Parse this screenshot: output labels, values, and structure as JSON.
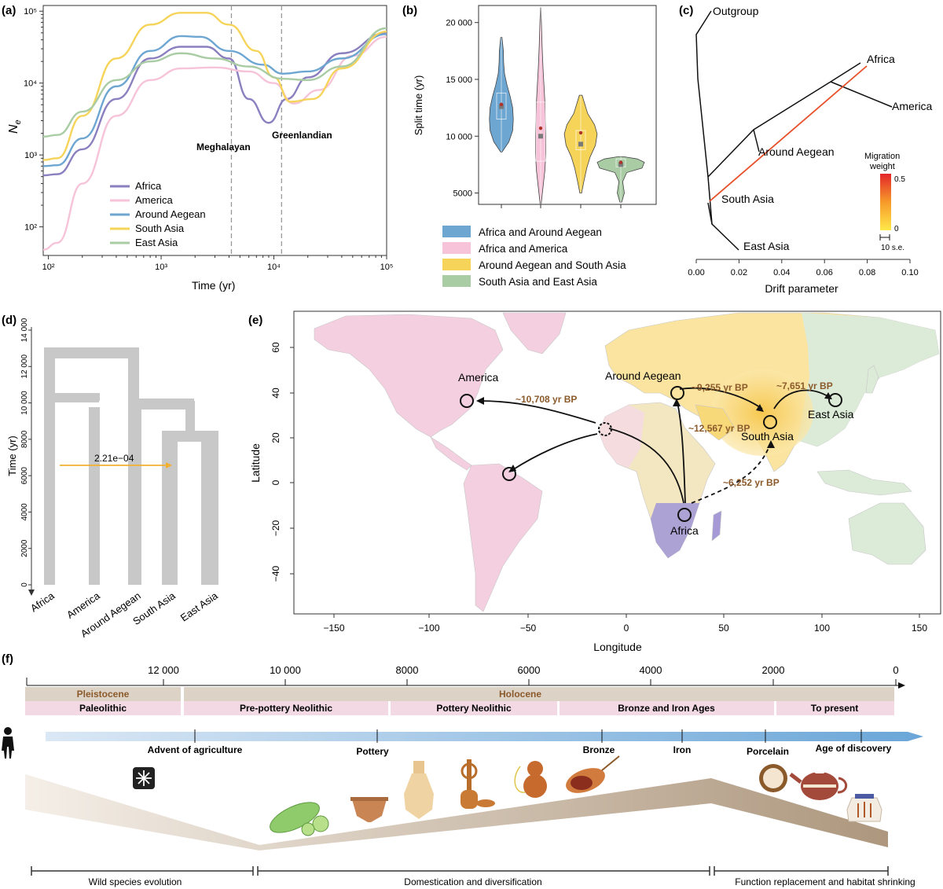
{
  "panel_labels": {
    "a": "(a)",
    "b": "(b)",
    "c": "(c)",
    "d": "(d)",
    "e": "(e)",
    "f": "(f)"
  },
  "colors": {
    "africa": "#8b7fbf",
    "america": "#f6c3d8",
    "aegean": "#6ea6d2",
    "south_asia": "#f6d45a",
    "east_asia": "#a9cca5",
    "bar": "#c8c8c8",
    "arrow": "#d9a34a",
    "mig_line": "#e8502a",
    "label_brown": "#8b5a2b",
    "timeline_bar": "#dcd2c6",
    "timeline_pink": "#f3d9e4",
    "timeline_blue": "#7fb1dc"
  },
  "chart_data": [
    {
      "id": "a",
      "type": "line",
      "ylabel": "Ne",
      "xlabel": "Time (yr)",
      "x_scale": "log",
      "y_scale": "log",
      "xlim": [
        90,
        100000
      ],
      "ylim": [
        40,
        120000
      ],
      "x_ticks": [
        {
          "v": 100,
          "l": "10²"
        },
        {
          "v": 1000,
          "l": "10³"
        },
        {
          "v": 10000,
          "l": "10⁴"
        },
        {
          "v": 100000,
          "l": "10⁵"
        }
      ],
      "y_ticks": [
        {
          "v": 100,
          "l": "10²"
        },
        {
          "v": 1000,
          "l": "10³"
        },
        {
          "v": 10000,
          "l": "10⁴"
        },
        {
          "v": 100000,
          "l": "10⁵"
        }
      ],
      "vlines": [
        {
          "x": 4200,
          "label": "Meghalayan"
        },
        {
          "x": 11700,
          "label": "Greenlandian"
        }
      ],
      "legend": [
        "Africa",
        "America",
        "Around Aegean",
        "South Asia",
        "East Asia"
      ],
      "series": [
        {
          "name": "Africa",
          "color": "#8b7fbf",
          "points": [
            [
              90,
              520
            ],
            [
              120,
              540
            ],
            [
              200,
              1200
            ],
            [
              400,
              6000
            ],
            [
              800,
              22000
            ],
            [
              1500,
              32000
            ],
            [
              2500,
              32000
            ],
            [
              4000,
              22000
            ],
            [
              6000,
              6000
            ],
            [
              9000,
              2800
            ],
            [
              13000,
              6000
            ],
            [
              20000,
              12000
            ],
            [
              40000,
              26000
            ],
            [
              100000,
              50000
            ]
          ]
        },
        {
          "name": "America",
          "color": "#f6c3d8",
          "points": [
            [
              90,
              48
            ],
            [
              120,
              60
            ],
            [
              200,
              400
            ],
            [
              400,
              3500
            ],
            [
              800,
              11000
            ],
            [
              1500,
              16000
            ],
            [
              3000,
              16500
            ],
            [
              6000,
              14500
            ],
            [
              10000,
              10000
            ],
            [
              15000,
              5200
            ],
            [
              25000,
              8000
            ],
            [
              50000,
              24000
            ],
            [
              100000,
              44000
            ]
          ]
        },
        {
          "name": "Around Aegean",
          "color": "#6ea6d2",
          "points": [
            [
              90,
              700
            ],
            [
              120,
              720
            ],
            [
              200,
              1700
            ],
            [
              400,
              9000
            ],
            [
              800,
              28000
            ],
            [
              1500,
              45000
            ],
            [
              2200,
              44000
            ],
            [
              4000,
              28000
            ],
            [
              8000,
              18000
            ],
            [
              12000,
              13500
            ],
            [
              20000,
              14500
            ],
            [
              40000,
              22000
            ],
            [
              100000,
              48000
            ]
          ]
        },
        {
          "name": "South Asia",
          "color": "#f6d45a",
          "points": [
            [
              90,
              850
            ],
            [
              120,
              900
            ],
            [
              200,
              3500
            ],
            [
              400,
              22000
            ],
            [
              800,
              65000
            ],
            [
              1500,
              95000
            ],
            [
              2500,
              95000
            ],
            [
              4000,
              65000
            ],
            [
              7000,
              28000
            ],
            [
              10000,
              12000
            ],
            [
              14000,
              5500
            ],
            [
              22000,
              6000
            ],
            [
              40000,
              16000
            ],
            [
              100000,
              52000
            ]
          ]
        },
        {
          "name": "East Asia",
          "color": "#a9cca5",
          "points": [
            [
              90,
              1800
            ],
            [
              120,
              1900
            ],
            [
              200,
              4000
            ],
            [
              400,
              11000
            ],
            [
              800,
              20000
            ],
            [
              1500,
              26000
            ],
            [
              3000,
              22000
            ],
            [
              6000,
              17000
            ],
            [
              12000,
              11500
            ],
            [
              20000,
              11000
            ],
            [
              40000,
              17000
            ],
            [
              100000,
              58000
            ]
          ]
        }
      ]
    },
    {
      "id": "b",
      "type": "violin",
      "ylabel": "Split time (yr)",
      "ylim": [
        4000,
        21500
      ],
      "y_ticks": [
        5000,
        10000,
        15000,
        20000
      ],
      "y_tick_labels": [
        "5000",
        "10 000",
        "15 000",
        "20 000"
      ],
      "legend": [
        "Africa and Around Aegean",
        "Africa and America",
        "Around Aegean and South Asia",
        "South Asia and East Asia"
      ],
      "groups": [
        {
          "name": "Africa and Around Aegean",
          "color": "#6ea6d2",
          "min": 8600,
          "max": 18700,
          "median": 12600,
          "mean": 12800,
          "q1": 11500,
          "q3": 13800,
          "profile": [
            [
              8600,
              0.05
            ],
            [
              9500,
              0.6
            ],
            [
              10500,
              0.9
            ],
            [
              11500,
              0.95
            ],
            [
              12500,
              0.9
            ],
            [
              13500,
              0.7
            ],
            [
              14500,
              0.45
            ],
            [
              15500,
              0.25
            ],
            [
              16500,
              0.18
            ],
            [
              17500,
              0.16
            ],
            [
              18700,
              0.05
            ]
          ]
        },
        {
          "name": "Africa and America",
          "color": "#f6c3d8",
          "min": 4000,
          "max": 21300,
          "median": 10000,
          "mean": 10700,
          "q1": 7800,
          "q3": 13000,
          "profile": [
            [
              4000,
              0.05
            ],
            [
              5500,
              0.25
            ],
            [
              7000,
              0.45
            ],
            [
              8500,
              0.55
            ],
            [
              10000,
              0.55
            ],
            [
              11500,
              0.5
            ],
            [
              13000,
              0.45
            ],
            [
              14500,
              0.35
            ],
            [
              16000,
              0.25
            ],
            [
              18000,
              0.15
            ],
            [
              20000,
              0.08
            ],
            [
              21300,
              0.02
            ]
          ]
        },
        {
          "name": "Around Aegean and South Asia",
          "color": "#f6d45a",
          "min": 5000,
          "max": 13600,
          "median": 9300,
          "mean": 10300,
          "q1": 8800,
          "q3": 10500,
          "profile": [
            [
              5000,
              0.05
            ],
            [
              6000,
              0.18
            ],
            [
              7200,
              0.35
            ],
            [
              8200,
              0.55
            ],
            [
              9200,
              0.85
            ],
            [
              10200,
              0.95
            ],
            [
              11000,
              0.8
            ],
            [
              12000,
              0.4
            ],
            [
              13000,
              0.2
            ],
            [
              13600,
              0.08
            ]
          ]
        },
        {
          "name": "South Asia and East Asia",
          "color": "#a9cca5",
          "min": 4200,
          "max": 8200,
          "median": 7500,
          "mean": 7700,
          "q1": 7300,
          "q3": 8000,
          "profile": [
            [
              4200,
              0.04
            ],
            [
              5000,
              0.15
            ],
            [
              6000,
              0.08
            ],
            [
              6800,
              0.25
            ],
            [
              7200,
              0.9
            ],
            [
              7700,
              1.0
            ],
            [
              8000,
              0.7
            ],
            [
              8200,
              0.1
            ]
          ]
        }
      ]
    },
    {
      "id": "c",
      "type": "tree",
      "xlabel": "Drift parameter",
      "xlim": [
        0,
        0.1
      ],
      "x_ticks": [
        "0.00",
        "0.02",
        "0.04",
        "0.06",
        "0.08",
        "0.10"
      ],
      "tips": [
        "Outgroup",
        "Africa",
        "America",
        "Around Aegean",
        "South Asia",
        "East Asia"
      ],
      "migration_legend": {
        "title_line1": "Migration",
        "title_line2": "weight",
        "max": "0.5",
        "min": "0",
        "scale": "10 s.e."
      }
    },
    {
      "id": "d",
      "type": "tree",
      "ylabel": "Time (yr)",
      "ylim": [
        0,
        14000
      ],
      "y_ticks": [
        "0",
        "2000",
        "4000",
        "6000",
        "8000",
        "10 000",
        "12 000",
        "14 000"
      ],
      "tips": [
        "Africa",
        "America",
        "Around Aegean",
        "South Asia",
        "East Asia"
      ],
      "migration_label": "2.21e−04"
    },
    {
      "id": "e",
      "type": "map",
      "xlabel": "Longitude",
      "ylabel": "Latitude",
      "xlim": [
        -170,
        160
      ],
      "ylim": [
        -55,
        85
      ],
      "x_ticks": [
        "−150",
        "−100",
        "−50",
        "0",
        "50",
        "100",
        "150"
      ],
      "y_ticks": [
        "60",
        "40",
        "20",
        "0",
        "−20",
        "−40"
      ],
      "places": [
        "America",
        "Around Aegean",
        "East Asia",
        "South Asia",
        "Africa"
      ],
      "routes": [
        "~10,708 yr BP",
        "~9,255 yr BP",
        "~7,651 yr BP",
        "~12,567 yr BP",
        "~6,252 yr BP"
      ]
    },
    {
      "id": "f",
      "type": "timeline",
      "ticks": [
        "12 000",
        "10 000",
        "8000",
        "6000",
        "4000",
        "2000",
        "0"
      ],
      "epochs": [
        "Pleistocene",
        "Holocene"
      ],
      "periods": [
        "Paleolithic",
        "Pre-pottery Neolithic",
        "Pottery Neolithic",
        "Bronze and Iron Ages",
        "To present"
      ],
      "events": [
        "Advent of agriculture",
        "Pottery",
        "Bronze",
        "Iron",
        "Porcelain",
        "Age of discovery"
      ],
      "phases": [
        "Wild species evolution",
        "Domestication and diversification",
        "Function replacement and habitat shrinking"
      ],
      "icons": [
        "human-icon",
        "snowflake-icon",
        "gourd-slices-icon",
        "bowl-icon",
        "vase-icon",
        "gourd-instrument-icon",
        "bottle-gourd-icon",
        "roasted-gourd-icon",
        "plate-icon",
        "teapot-icon",
        "jar-icon"
      ]
    }
  ]
}
